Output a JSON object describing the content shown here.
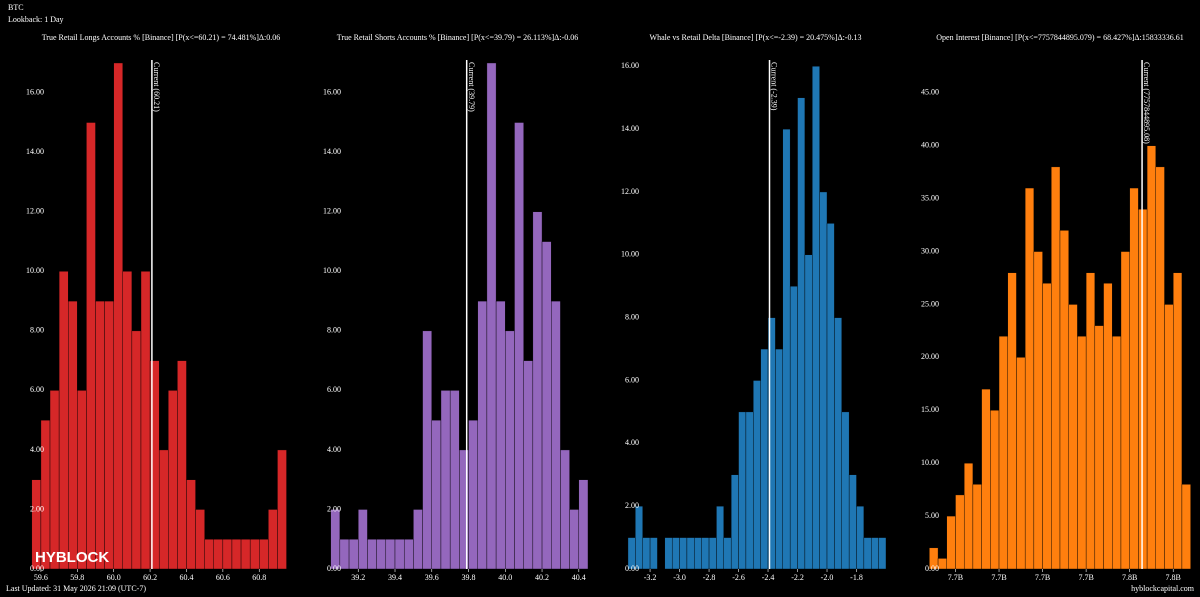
{
  "header": {
    "symbol": "BTC",
    "lookback": "Lookback: 1 Day"
  },
  "watermark": "HYBLOCK",
  "footer": {
    "updated": "Last Updated: 31 May 2026 21:09 (UTC-7)",
    "site": "hyblockcapital.com"
  },
  "chart_data": [
    {
      "type": "histogram",
      "title": "True Retail Longs Accounts % [Binance] [P(x<=60.21) = 74.481%]Δ:0.06",
      "color": "#d62728",
      "bins": [
        59.55,
        59.6,
        59.65,
        59.7,
        59.75,
        59.8,
        59.85,
        59.9,
        59.95,
        60,
        60.05,
        60.1,
        60.15,
        60.2,
        60.25,
        60.3,
        60.35,
        60.4,
        60.45,
        60.5,
        60.55,
        60.6,
        60.65,
        60.7,
        60.75,
        60.8,
        60.85,
        60.9,
        60.95
      ],
      "values": [
        3,
        5,
        6,
        10,
        9,
        6,
        15,
        9,
        9,
        17,
        10,
        8,
        10,
        7,
        4,
        6,
        7,
        3,
        2,
        1,
        1,
        1,
        1,
        1,
        1,
        1,
        2,
        4
      ],
      "xlim": [
        59.54,
        60.98
      ],
      "ylim": [
        0,
        17.1
      ],
      "xticks": [
        59.6,
        59.8,
        {
          "value": 60,
          "label": "60.0"
        },
        60.2,
        60.4,
        60.6,
        60.8
      ],
      "yticks": [
        {
          "value": 0,
          "label": "0.00"
        },
        {
          "value": 2,
          "label": "2.00"
        },
        {
          "value": 4,
          "label": "4.00"
        },
        {
          "value": 6,
          "label": "6.00"
        },
        {
          "value": 8,
          "label": "8.00"
        },
        {
          "value": 10,
          "label": "10.00"
        },
        {
          "value": 12,
          "label": "12.00"
        },
        {
          "value": 14,
          "label": "14.00"
        },
        {
          "value": 16,
          "label": "16.00"
        }
      ],
      "current": 60.21,
      "current_label": "Current (60.21)"
    },
    {
      "type": "histogram",
      "title": "True Retail Shorts Accounts % [Binance] [P(x<=39.79) = 26.113%]Δ:-0.06",
      "color": "#9467bd",
      "bins": [
        39.05,
        39.1,
        39.15,
        39.2,
        39.25,
        39.3,
        39.35,
        39.4,
        39.45,
        39.5,
        39.55,
        39.6,
        39.65,
        39.7,
        39.75,
        39.8,
        39.85,
        39.9,
        39.95,
        40,
        40.05,
        40.1,
        40.15,
        40.2,
        40.25,
        40.3,
        40.35,
        40.4,
        40.45
      ],
      "values": [
        2,
        1,
        1,
        2,
        1,
        1,
        1,
        1,
        1,
        2,
        8,
        5,
        6,
        6,
        4,
        5,
        9,
        17,
        9,
        8,
        15,
        7,
        12,
        11,
        9,
        4,
        2,
        3
      ],
      "xlim": [
        39.03,
        40.45
      ],
      "ylim": [
        0,
        17.1
      ],
      "xticks": [
        39.2,
        39.4,
        39.6,
        39.8,
        {
          "value": 40,
          "label": "40.0"
        },
        40.2,
        40.4
      ],
      "yticks": [
        {
          "value": 0,
          "label": "0.00"
        },
        {
          "value": 2,
          "label": "2.00"
        },
        {
          "value": 4,
          "label": "4.00"
        },
        {
          "value": 6,
          "label": "6.00"
        },
        {
          "value": 8,
          "label": "8.00"
        },
        {
          "value": 10,
          "label": "10.00"
        },
        {
          "value": 12,
          "label": "12.00"
        },
        {
          "value": 14,
          "label": "14.00"
        },
        {
          "value": 16,
          "label": "16.00"
        }
      ],
      "current": 39.79,
      "current_label": "Current (39.79)"
    },
    {
      "type": "histogram",
      "title": "Whale vs Retail Delta [Binance] [P(x<=-2.39) = 20.475%]Δ:-0.13",
      "color": "#1f77b4",
      "bins": [
        -3.35,
        -3.3,
        -3.25,
        -3.2,
        -3.15,
        -3.1,
        -3.05,
        -3,
        -2.95,
        -2.9,
        -2.85,
        -2.8,
        -2.75,
        -2.7,
        -2.65,
        -2.6,
        -2.55,
        -2.5,
        -2.45,
        -2.4,
        -2.35,
        -2.3,
        -2.25,
        -2.2,
        -2.15,
        -2.1,
        -2.05,
        -2,
        -1.95,
        -1.9,
        -1.85,
        -1.8,
        -1.75,
        -1.7,
        -1.65,
        -1.6
      ],
      "values": [
        1,
        2,
        1,
        1,
        0,
        1,
        1,
        1,
        1,
        1,
        1,
        1,
        2,
        1,
        3,
        5,
        5,
        6,
        7,
        8,
        7,
        14,
        9,
        15,
        10,
        16,
        12,
        11,
        8,
        5,
        3,
        2,
        1,
        1,
        1
      ],
      "xlim": [
        -3.37,
        -1.6
      ],
      "ylim": [
        0,
        16.2
      ],
      "xticks": [
        -3.2,
        {
          "value": -3,
          "label": "-3.0"
        },
        -2.8,
        -2.6,
        -2.4,
        -2.2,
        {
          "value": -2,
          "label": "-2.0"
        },
        -1.8
      ],
      "yticks": [
        {
          "value": 0,
          "label": "0.00"
        },
        {
          "value": 2,
          "label": "2.00"
        },
        {
          "value": 4,
          "label": "4.00"
        },
        {
          "value": 6,
          "label": "6.00"
        },
        {
          "value": 8,
          "label": "8.00"
        },
        {
          "value": 10,
          "label": "10.00"
        },
        {
          "value": 12,
          "label": "12.00"
        },
        {
          "value": 14,
          "label": "14.00"
        },
        {
          "value": 16,
          "label": "16.00"
        }
      ],
      "current": -2.39,
      "current_label": "Current (-2.39)"
    },
    {
      "type": "histogram",
      "title": "Open Interest [Binance] [P(x<=7757844895.079) = 68.427%]Δ:15833336.61",
      "color": "#ff7f0e",
      "bins": [
        7709000000,
        7711000000,
        7713000000,
        7715000000,
        7717000000,
        7719000000,
        7721000000,
        7723000000,
        7725000000,
        7727000000,
        7729000000,
        7731000000,
        7733000000,
        7735000000,
        7737000000,
        7739000000,
        7741000000,
        7743000000,
        7745000000,
        7747000000,
        7749000000,
        7751000000,
        7753000000,
        7755000000,
        7757000000,
        7759000000,
        7761000000,
        7763000000,
        7765000000,
        7767000000,
        7769000000
      ],
      "values": [
        2,
        1,
        5,
        7,
        10,
        8,
        17,
        15,
        22,
        28,
        20,
        36,
        30,
        27,
        38,
        32,
        25,
        22,
        28,
        23,
        27,
        22,
        30,
        36,
        34,
        40,
        38,
        25,
        28,
        8
      ],
      "xlim": [
        7708000000,
        7770000000
      ],
      "ylim": [
        0,
        48.1
      ],
      "xticks": [
        {
          "value": 7715000000,
          "label": "7.7B"
        },
        {
          "value": 7725000000,
          "label": "7.7B"
        },
        {
          "value": 7735000000,
          "label": "7.7B"
        },
        {
          "value": 7745000000,
          "label": "7.7B"
        },
        {
          "value": 7755000000,
          "label": "7.8B"
        },
        {
          "value": 7765000000,
          "label": "7.8B"
        }
      ],
      "yticks": [
        {
          "value": 0,
          "label": "0.00"
        },
        {
          "value": 5,
          "label": "5.00"
        },
        {
          "value": 10,
          "label": "10.00"
        },
        {
          "value": 15,
          "label": "15.00"
        },
        {
          "value": 20,
          "label": "20.00"
        },
        {
          "value": 25,
          "label": "25.00"
        },
        {
          "value": 30,
          "label": "30.00"
        },
        {
          "value": 35,
          "label": "35.00"
        },
        {
          "value": 40,
          "label": "40.00"
        },
        {
          "value": 45,
          "label": "45.00"
        }
      ],
      "current": 7757844895.08,
      "current_label": "Current (7757844895.08)"
    }
  ]
}
